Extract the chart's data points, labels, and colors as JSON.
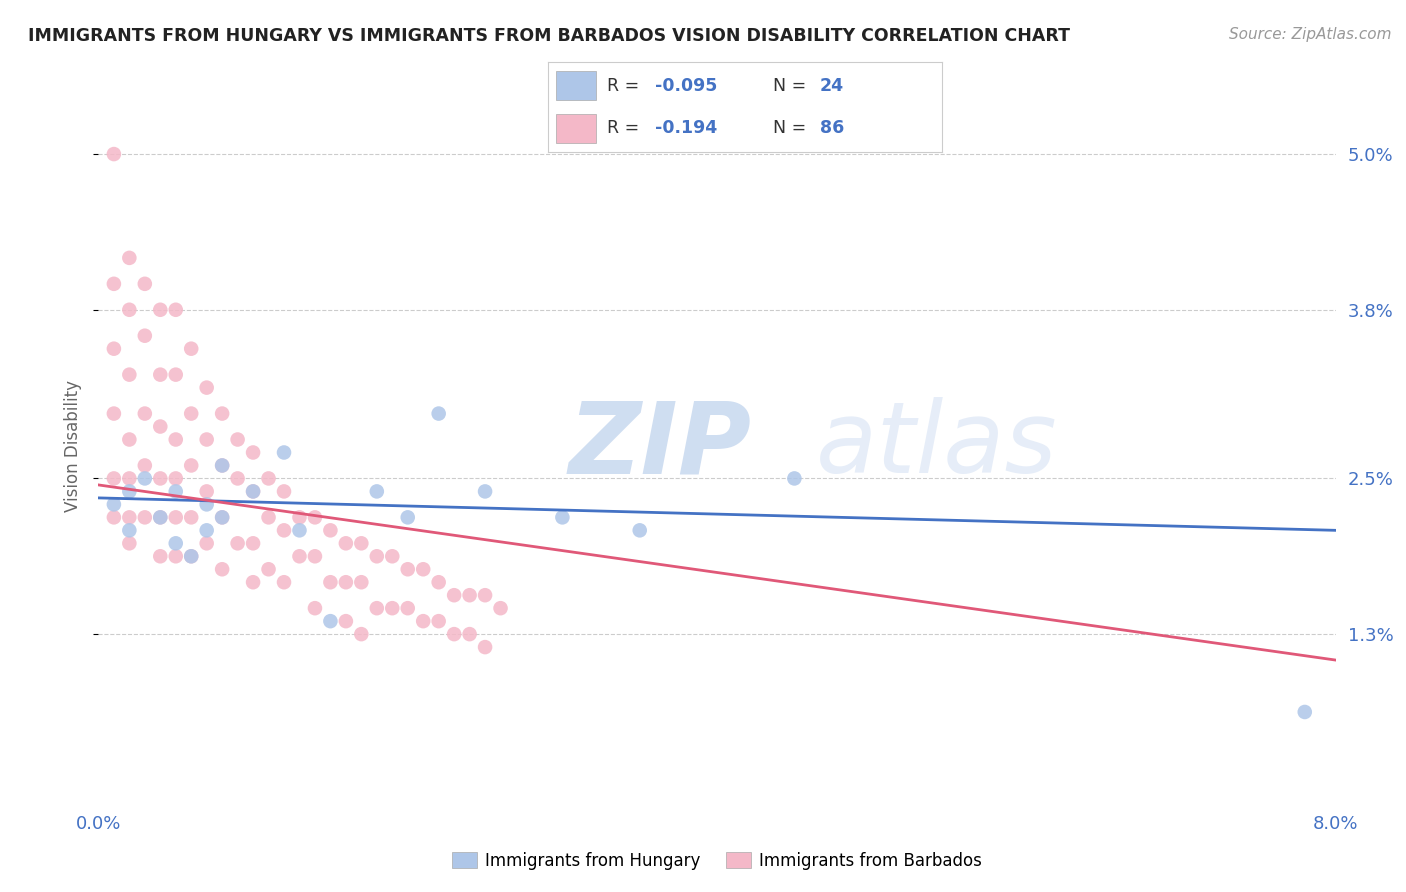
{
  "title": "IMMIGRANTS FROM HUNGARY VS IMMIGRANTS FROM BARBADOS VISION DISABILITY CORRELATION CHART",
  "source": "Source: ZipAtlas.com",
  "ylabel": "Vision Disability",
  "xlim": [
    0.0,
    0.08
  ],
  "ylim": [
    0.0,
    0.055
  ],
  "yticks": [
    0.013,
    0.025,
    0.038,
    0.05
  ],
  "ytick_labels": [
    "1.3%",
    "2.5%",
    "3.8%",
    "5.0%"
  ],
  "xticks": [
    0.0,
    0.02,
    0.04,
    0.06,
    0.08
  ],
  "xtick_labels": [
    "0.0%",
    "",
    "",
    "",
    "8.0%"
  ],
  "legend_R_hungary": "-0.095",
  "legend_N_hungary": "24",
  "legend_R_barbados": "-0.194",
  "legend_N_barbados": "86",
  "hungary_color": "#aec6e8",
  "barbados_color": "#f4b8c8",
  "trend_hungary_color": "#4472c4",
  "trend_barbados_color": "#e05878",
  "watermark_zip": "ZIP",
  "watermark_atlas": "atlas",
  "hungary_x": [
    0.001,
    0.002,
    0.002,
    0.003,
    0.004,
    0.005,
    0.005,
    0.006,
    0.007,
    0.007,
    0.008,
    0.008,
    0.01,
    0.012,
    0.013,
    0.015,
    0.018,
    0.02,
    0.022,
    0.025,
    0.03,
    0.035,
    0.045,
    0.078
  ],
  "hungary_y": [
    0.023,
    0.021,
    0.024,
    0.025,
    0.022,
    0.024,
    0.02,
    0.019,
    0.023,
    0.021,
    0.022,
    0.026,
    0.024,
    0.027,
    0.021,
    0.014,
    0.024,
    0.022,
    0.03,
    0.024,
    0.022,
    0.021,
    0.025,
    0.007
  ],
  "barbados_x": [
    0.001,
    0.001,
    0.001,
    0.001,
    0.001,
    0.001,
    0.002,
    0.002,
    0.002,
    0.002,
    0.002,
    0.002,
    0.002,
    0.003,
    0.003,
    0.003,
    0.003,
    0.003,
    0.004,
    0.004,
    0.004,
    0.004,
    0.004,
    0.004,
    0.005,
    0.005,
    0.005,
    0.005,
    0.005,
    0.005,
    0.006,
    0.006,
    0.006,
    0.006,
    0.006,
    0.007,
    0.007,
    0.007,
    0.007,
    0.008,
    0.008,
    0.008,
    0.008,
    0.009,
    0.009,
    0.009,
    0.01,
    0.01,
    0.01,
    0.01,
    0.011,
    0.011,
    0.011,
    0.012,
    0.012,
    0.012,
    0.013,
    0.013,
    0.014,
    0.014,
    0.014,
    0.015,
    0.015,
    0.016,
    0.016,
    0.016,
    0.017,
    0.017,
    0.017,
    0.018,
    0.018,
    0.019,
    0.019,
    0.02,
    0.02,
    0.021,
    0.021,
    0.022,
    0.022,
    0.023,
    0.023,
    0.024,
    0.024,
    0.025,
    0.025,
    0.026
  ],
  "barbados_y": [
    0.05,
    0.04,
    0.035,
    0.03,
    0.025,
    0.022,
    0.042,
    0.038,
    0.033,
    0.028,
    0.025,
    0.022,
    0.02,
    0.04,
    0.036,
    0.03,
    0.026,
    0.022,
    0.038,
    0.033,
    0.029,
    0.025,
    0.022,
    0.019,
    0.038,
    0.033,
    0.028,
    0.025,
    0.022,
    0.019,
    0.035,
    0.03,
    0.026,
    0.022,
    0.019,
    0.032,
    0.028,
    0.024,
    0.02,
    0.03,
    0.026,
    0.022,
    0.018,
    0.028,
    0.025,
    0.02,
    0.027,
    0.024,
    0.02,
    0.017,
    0.025,
    0.022,
    0.018,
    0.024,
    0.021,
    0.017,
    0.022,
    0.019,
    0.022,
    0.019,
    0.015,
    0.021,
    0.017,
    0.02,
    0.017,
    0.014,
    0.02,
    0.017,
    0.013,
    0.019,
    0.015,
    0.019,
    0.015,
    0.018,
    0.015,
    0.018,
    0.014,
    0.017,
    0.014,
    0.016,
    0.013,
    0.016,
    0.013,
    0.016,
    0.012,
    0.015
  ],
  "trend_hungary_x0": 0.0,
  "trend_hungary_y0": 0.0235,
  "trend_hungary_x1": 0.08,
  "trend_hungary_y1": 0.021,
  "trend_barbados_x0": 0.0,
  "trend_barbados_y0": 0.0245,
  "trend_barbados_x1": 0.08,
  "trend_barbados_y1": 0.011
}
